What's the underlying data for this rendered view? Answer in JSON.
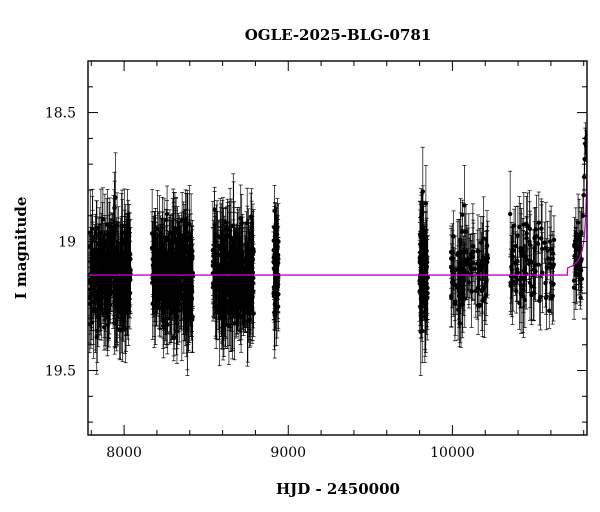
{
  "chart_data": {
    "type": "scatter",
    "title": "OGLE-2025-BLG-0781",
    "xlabel": "HJD - 2450000",
    "ylabel": "I magnitude",
    "xlim": [
      7780,
      10820
    ],
    "ylim": [
      19.75,
      18.3
    ],
    "y_inverted": true,
    "grid": false,
    "x_major_ticks": [
      8000,
      9000,
      10000
    ],
    "x_major_tick_labels": [
      "8000",
      "9000",
      "10000"
    ],
    "y_major_ticks": [
      18.5,
      19,
      19.5
    ],
    "y_major_tick_labels": [
      "18.5",
      "19",
      "19.5"
    ],
    "colors": {
      "points": "#000000",
      "errorbars": "#000000",
      "model": "#cc00cc"
    },
    "series": [
      {
        "kind": "points_with_errorbars",
        "seasons": [
          {
            "x_range": [
              7790,
              8040
            ],
            "mag_mean": 19.13,
            "mag_scatter": 0.09,
            "err_mean": 0.13,
            "count": 320
          },
          {
            "x_range": [
              8170,
              8420
            ],
            "mag_mean": 19.12,
            "mag_scatter": 0.09,
            "err_mean": 0.13,
            "count": 320
          },
          {
            "x_range": [
              8540,
              8790
            ],
            "mag_mean": 19.13,
            "mag_scatter": 0.09,
            "err_mean": 0.13,
            "count": 320
          },
          {
            "x_range": [
              8910,
              8940
            ],
            "mag_mean": 19.1,
            "mag_scatter": 0.09,
            "err_mean": 0.12,
            "count": 60
          },
          {
            "x_range": [
              9800,
              9850
            ],
            "mag_mean": 19.12,
            "mag_scatter": 0.1,
            "err_mean": 0.13,
            "count": 90
          },
          {
            "x_range": [
              9990,
              10220
            ],
            "mag_mean": 19.1,
            "mag_scatter": 0.08,
            "err_mean": 0.11,
            "count": 110
          },
          {
            "x_range": [
              10350,
              10620
            ],
            "mag_mean": 19.1,
            "mag_scatter": 0.08,
            "err_mean": 0.11,
            "count": 100
          },
          {
            "x_range": [
              10740,
              10790
            ],
            "mag_mean": 19.05,
            "mag_scatter": 0.07,
            "err_mean": 0.09,
            "count": 40
          }
        ],
        "event_points": [
          {
            "x": 10795,
            "y": 18.9,
            "err": 0.08
          },
          {
            "x": 10800,
            "y": 18.82,
            "err": 0.07
          },
          {
            "x": 10803,
            "y": 18.75,
            "err": 0.07
          },
          {
            "x": 10806,
            "y": 18.68,
            "err": 0.06
          },
          {
            "x": 10809,
            "y": 18.62,
            "err": 0.06
          },
          {
            "x": 10812,
            "y": 18.6,
            "err": 0.06
          },
          {
            "x": 10815,
            "y": 18.63,
            "err": 0.06
          },
          {
            "x": 10818,
            "y": 18.68,
            "err": 0.07
          }
        ]
      },
      {
        "kind": "model_curve",
        "baseline_mag": 19.13,
        "peak_x": 10825,
        "peak_mag": 18.62,
        "rise_start_x": 10700
      }
    ]
  }
}
